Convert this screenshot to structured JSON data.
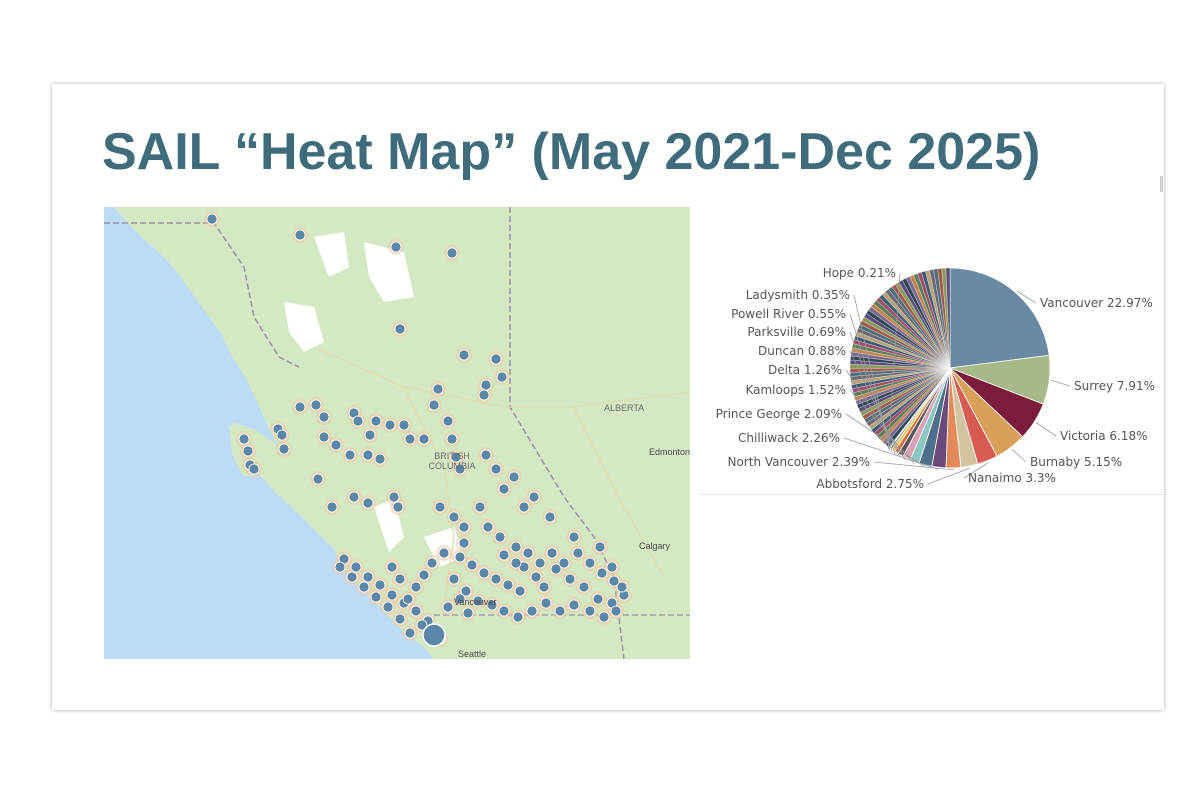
{
  "slide": {
    "title": "SAIL “Heat Map” (May 2021-Dec 2025)"
  },
  "map": {
    "region_labels": {
      "bc": "BRITISH COLUMBIA",
      "alberta": "ALBERTA"
    },
    "city_labels": {
      "vancouver": "Vancouver",
      "seattle": "Seattle",
      "edmonton": "Edmonton",
      "calgary": "Calgary"
    },
    "colors": {
      "water": "#bcdcf6",
      "land": "#d4e8c4",
      "dot": "#5c86a8",
      "halo": "#f0c9a6",
      "snow": "#ffffff"
    }
  },
  "chart_data": {
    "type": "pie",
    "title": "",
    "slices": [
      {
        "label": "Vancouver",
        "value": 22.97,
        "color": "#6a8aa3"
      },
      {
        "label": "Surrey",
        "value": 7.91,
        "color": "#a9b889"
      },
      {
        "label": "Victoria",
        "value": 6.18,
        "color": "#7b1d3a"
      },
      {
        "label": "Burnaby",
        "value": 5.15,
        "color": "#d9a059"
      },
      {
        "label": "Nanaimo",
        "value": 3.3,
        "color": "#d65b52"
      },
      {
        "label": "Abbotsford",
        "value": 2.75,
        "color": "#d3c4a0"
      },
      {
        "label": "North Vancouver",
        "value": 2.39,
        "color": "#e48a5a"
      },
      {
        "label": "Chilliwack",
        "value": 2.26,
        "color": "#6a4a7a"
      },
      {
        "label": "Prince George",
        "value": 2.09,
        "color": "#4e6f8a"
      },
      {
        "label": "Kamloops",
        "value": 1.52,
        "color": "#89c7c0"
      },
      {
        "label": "Delta",
        "value": 1.26,
        "color": "#d8a2b6"
      },
      {
        "label": "Duncan",
        "value": 0.88,
        "color": "#555555"
      },
      {
        "label": "Parksville",
        "value": 0.69,
        "color": "#e06a3a"
      },
      {
        "label": "Powell River",
        "value": 0.55,
        "color": "#e3c84c"
      },
      {
        "label": "Ladysmith",
        "value": 0.35,
        "color": "#8f8f8f"
      },
      {
        "label": "Hope",
        "value": 0.21,
        "color": "#a9d1e2"
      }
    ],
    "other_slices_unlabeled": true,
    "label_format": "{label} {value}%"
  }
}
